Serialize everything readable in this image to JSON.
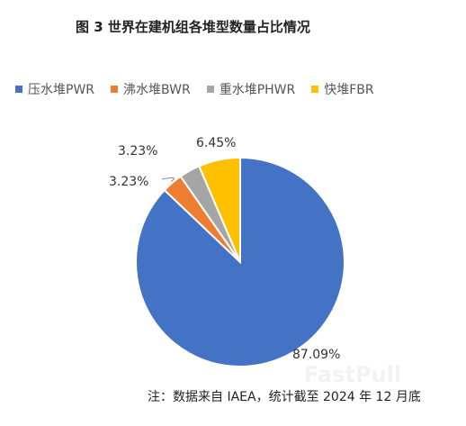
{
  "chart_data": {
    "type": "pie",
    "title": "图 3 世界在建机组各堆型数量占比情况",
    "categories": [
      "压水堆PWR",
      "沸水堆BWR",
      "重水堆PHWR",
      "快堆FBR"
    ],
    "values": [
      87.09,
      3.23,
      3.23,
      6.45
    ],
    "value_labels": [
      "87.09%",
      "3.23%",
      "3.23%",
      "6.45%"
    ],
    "colors": [
      "#4472C4",
      "#ED7D31",
      "#A5A5A5",
      "#FFC000"
    ],
    "legend_position": "top",
    "start_angle_deg": 0,
    "direction": "counterclockwise"
  },
  "footnote": "注：数据来自 IAEA，统计截至 2024 年 12 月底"
}
